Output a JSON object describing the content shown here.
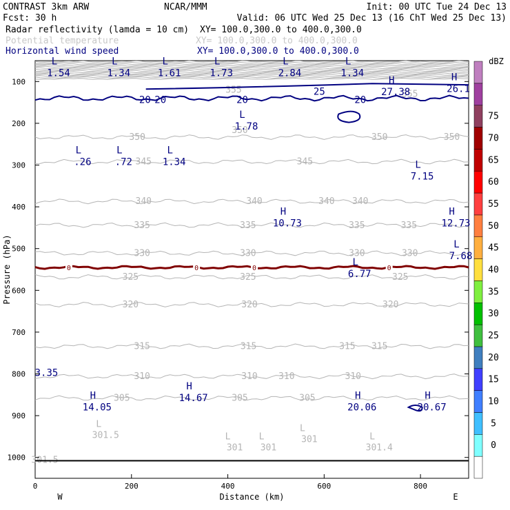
{
  "header": {
    "left1": "CONTRAST  3km ARW",
    "center1": "NCAR/MMM",
    "right1": "Init: 00 UTC Tue 24 Dec 13",
    "left2": "Fcst:   30 h",
    "right2": "Valid: 06 UTC Wed 25 Dec 13 (16 ChT Wed 25 Dec 13)",
    "field1": "Radar reflectivity (lamda = 10 cm)",
    "xy1": "XY= 100.0,300.0 to 400.0,300.0",
    "field2": "Potential temperature",
    "xy2": "XY= 100.0,300.0 to 400.0,300.0",
    "field3": "Horizontal wind speed",
    "xy3": "XY= 100.0,300.0 to 400.0,300.0"
  },
  "colors": {
    "theta": "#b4b4b4",
    "wind": "#000080",
    "freezing": "#800000",
    "axis": "#000000"
  },
  "chart_data": {
    "type": "contour-cross-section",
    "xlabel": "Distance (km)",
    "ylabel": "Pressure (hPa)",
    "xlim": [
      0,
      900
    ],
    "ylim": [
      1050,
      50
    ],
    "x_ticks": [
      0,
      200,
      400,
      600,
      800
    ],
    "y_ticks": [
      100,
      200,
      300,
      400,
      500,
      600,
      700,
      800,
      900,
      1000
    ],
    "x_end_labels": {
      "left": "W",
      "right": "E"
    },
    "surface_p": 1008,
    "theta_isentropes": [
      {
        "label": "350",
        "p": 233,
        "labels_at_x": [
          212,
          715,
          865
        ]
      },
      {
        "label": "345",
        "p": 292,
        "labels_at_x": [
          225,
          560
        ]
      },
      {
        "label": "340",
        "p": 387,
        "labels_at_x": [
          225,
          455,
          605,
          675
        ]
      },
      {
        "label": "335",
        "p": 444,
        "labels_at_x": [
          222,
          442,
          668,
          776
        ]
      },
      {
        "label": "330",
        "p": 511,
        "labels_at_x": [
          222,
          442,
          668,
          778
        ]
      },
      {
        "label": "325",
        "p": 568,
        "labels_at_x": [
          198,
          442,
          758
        ]
      },
      {
        "label": "320",
        "p": 634,
        "labels_at_x": [
          198,
          445,
          738
        ]
      },
      {
        "label": "315",
        "p": 734,
        "labels_at_x": [
          222,
          443,
          648,
          715
        ]
      },
      {
        "label": "310",
        "p": 806,
        "labels_at_x": [
          222,
          445,
          522,
          660
        ]
      },
      {
        "label": "305",
        "p": 858,
        "labels_at_x": [
          180,
          425,
          565
        ]
      }
    ],
    "theta_extra_labels": [
      {
        "text": "350",
        "x": 425,
        "p": 217
      },
      {
        "text": "355",
        "x": 412,
        "p": 120
      },
      {
        "text": "355",
        "x": 778,
        "p": 130
      }
    ],
    "theta_extrema": [
      {
        "kind": "L",
        "value": "301.5",
        "x": 132,
        "p": 940
      },
      {
        "kind": "L",
        "value": "301",
        "x": 400,
        "p": 970
      },
      {
        "kind": "L",
        "value": "301",
        "x": 470,
        "p": 970
      },
      {
        "kind": "L",
        "value": "301",
        "x": 555,
        "p": 950
      },
      {
        "kind": "L",
        "value": "301.4",
        "x": 700,
        "p": 970
      },
      {
        "kind": "",
        "value": "301.5",
        "x": 0,
        "p": 1000
      }
    ],
    "wind_contours": [
      {
        "label": "20",
        "p": 140,
        "label_x": [
          228,
          260,
          430,
          675
        ]
      },
      {
        "label": "25",
        "p": 120,
        "label_x": [
          590
        ]
      }
    ],
    "wind_extrema": [
      {
        "kind": "L",
        "value": "1.54",
        "x": 40,
        "p": 72
      },
      {
        "kind": "L",
        "value": "1.34",
        "x": 165,
        "p": 72
      },
      {
        "kind": "L",
        "value": "1.61",
        "x": 270,
        "p": 72
      },
      {
        "kind": "L",
        "value": "1.73",
        "x": 378,
        "p": 72
      },
      {
        "kind": "L",
        "value": "2.84",
        "x": 520,
        "p": 72
      },
      {
        "kind": "L",
        "value": "1.34",
        "x": 650,
        "p": 72
      },
      {
        "kind": "H",
        "value": "27.38",
        "x": 740,
        "p": 118
      },
      {
        "kind": "H",
        "value": "26.1",
        "x": 870,
        "p": 110
      },
      {
        "kind": "L",
        "value": "1.78",
        "x": 430,
        "p": 200
      },
      {
        "kind": "L",
        "value": ".26",
        "x": 90,
        "p": 285
      },
      {
        "kind": "L",
        "value": ".72",
        "x": 175,
        "p": 285
      },
      {
        "kind": "L",
        "value": "1.34",
        "x": 280,
        "p": 285
      },
      {
        "kind": "L",
        "value": "7.15",
        "x": 795,
        "p": 320
      },
      {
        "kind": "H",
        "value": "10.73",
        "x": 515,
        "p": 432
      },
      {
        "kind": "H",
        "value": "12.73",
        "x": 865,
        "p": 432
      },
      {
        "kind": "L",
        "value": "7.68",
        "x": 875,
        "p": 510
      },
      {
        "kind": "L",
        "value": "6.77",
        "x": 665,
        "p": 553
      },
      {
        "kind": "",
        "value": "3.35",
        "x": 15,
        "p": 790
      },
      {
        "kind": "H",
        "value": "14.67",
        "x": 320,
        "p": 850
      },
      {
        "kind": "H",
        "value": "14.05",
        "x": 120,
        "p": 873
      },
      {
        "kind": "H",
        "value": "20.06",
        "x": 670,
        "p": 873
      },
      {
        "kind": "H",
        "value": "20.67",
        "x": 815,
        "p": 873
      }
    ],
    "freezing_level": {
      "label": "0",
      "p": 545,
      "labels_at_x": [
        70,
        335,
        455,
        735
      ]
    },
    "legend": {
      "unit": "dBZ",
      "placement": "right",
      "levels": [
        "0",
        "5",
        "10",
        "15",
        "20",
        "25",
        "30",
        "35",
        "40",
        "45",
        "50",
        "55",
        "60",
        "65",
        "70",
        "75"
      ],
      "colors": [
        "#ffffff",
        "#7fffff",
        "#3fbfff",
        "#3f7fff",
        "#3f3fff",
        "#3f7fbf",
        "#3fbf3f",
        "#00c000",
        "#7fef3f",
        "#ffdf3f",
        "#ffaf3f",
        "#ff7f3f",
        "#ff3f3f",
        "#ff0000",
        "#c00000",
        "#a00000",
        "#8f3f5f",
        "#9f3f9f",
        "#bf7fbf"
      ]
    }
  }
}
